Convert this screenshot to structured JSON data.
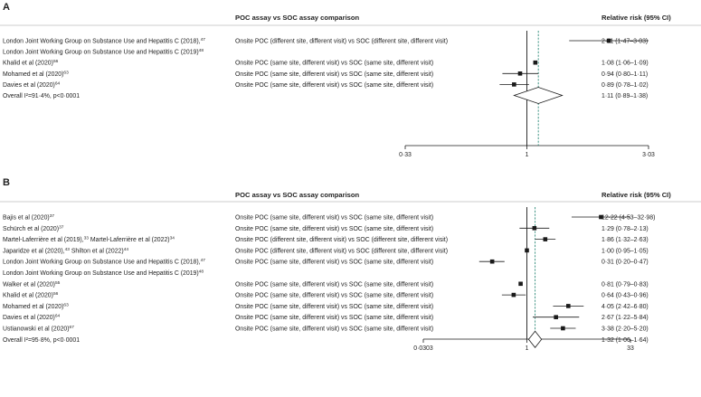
{
  "chart_data": [
    {
      "type": "forest",
      "panel": "A",
      "header": {
        "comparison": "POC assay vs SOC assay comparison",
        "effect": "Relative risk (95% CI)"
      },
      "scale": "log",
      "xlim": [
        0.33,
        3.03
      ],
      "ticks": [
        "0·33",
        "1",
        "3·03"
      ],
      "tick_values": [
        0.33,
        1,
        3.03
      ],
      "pooled_estimate": 1.11,
      "rows": [
        {
          "study": "London Joint Working Group on Substance Use and Hepatitis C (2018),",
          "ref": "47",
          "comparison": "Onsite POC (different site, different visit) vs SOC (different site, different visit)",
          "rr": 2.11,
          "lo": 1.47,
          "hi": 3.03,
          "label": "2·11 (1·47–3·03)"
        },
        {
          "study": "London Joint Working Group on Substance Use and Hepatitis C (2019)",
          "ref": "48",
          "comparison": "",
          "label": ""
        },
        {
          "study": "Khalid et al (2020)",
          "ref": "56",
          "comparison": "Onsite POC (same site, different visit) vs SOC (same site, different visit)",
          "rr": 1.08,
          "lo": 1.06,
          "hi": 1.09,
          "label": "1·08 (1·06–1·09)"
        },
        {
          "study": "Mohamed et al (2020)",
          "ref": "63",
          "comparison": "Onsite POC (same site, different visit) vs SOC (same site, different visit)",
          "rr": 0.94,
          "lo": 0.8,
          "hi": 1.11,
          "label": "0·94 (0·80–1·11)"
        },
        {
          "study": "Davies et al (2020)",
          "ref": "64",
          "comparison": "Onsite POC (same site, different visit) vs SOC (same site, different visit)",
          "rr": 0.89,
          "lo": 0.78,
          "hi": 1.02,
          "label": "0·89 (0·78–1·02)"
        },
        {
          "study": "Overall I²=91·4%, p<0·0001",
          "ref": "",
          "comparison": "",
          "overall": true,
          "rr": 1.11,
          "lo": 0.89,
          "hi": 1.38,
          "label": "1·11 (0·89–1·38)"
        }
      ]
    },
    {
      "type": "forest",
      "panel": "B",
      "header": {
        "comparison": "POC assay vs SOC assay comparison",
        "effect": "Relative risk (95% CI)"
      },
      "scale": "log",
      "xlim": [
        0.0303,
        33
      ],
      "ticks": [
        "0·0303",
        "1",
        "33"
      ],
      "tick_values": [
        0.0303,
        1,
        33
      ],
      "pooled_estimate": 1.32,
      "rows": [
        {
          "study": "Bajis et al (2020)",
          "ref": "37",
          "comparison": "Onsite POC (same site, different visit) vs SOC (same site, different visit)",
          "rr": 12.22,
          "lo": 4.53,
          "hi": 32.98,
          "label": "12·22 (4·53–32·98)"
        },
        {
          "study": "Schürch et al (2020)",
          "ref": "37",
          "comparison": "Onsite POC (same site, different visit) vs SOC (same site, different visit)",
          "rr": 1.29,
          "lo": 0.78,
          "hi": 2.13,
          "label": "1·29 (0·78–2·13)"
        },
        {
          "study": "Martel-Laferrière et al (2019),",
          "ref": "33",
          "study2": " Martel-Laferrière et al (2022)",
          "ref2": "34",
          "comparison": "Onsite POC (different site, different visit) vs SOC (different site, different visit)",
          "rr": 1.86,
          "lo": 1.32,
          "hi": 2.63,
          "label": "1·86 (1·32–2·63)"
        },
        {
          "study": "Japaridze et al (2020),",
          "ref": "43",
          "study2": " Shilton et al (2022)",
          "ref2": "44",
          "comparison": "Onsite POC (different site, different visit) vs SOC (different site, different visit)",
          "rr": 1.0,
          "lo": 0.95,
          "hi": 1.05,
          "label": "1·00 (0·95–1·05)"
        },
        {
          "study": "London Joint Working Group on Substance Use and Hepatitis C (2018),",
          "ref": "47",
          "comparison": "Onsite POC (same site, different visit) vs SOC (same site, different visit)",
          "rr": 0.31,
          "lo": 0.2,
          "hi": 0.47,
          "label": "0·31 (0·20–0·47)"
        },
        {
          "study": "London Joint Working Group on Substance Use and Hepatitis C (2019)",
          "ref": "48",
          "comparison": "",
          "label": ""
        },
        {
          "study": "Walker et al (2020)",
          "ref": "55",
          "comparison": "Onsite POC (same site, different visit) vs SOC (same site, different visit)",
          "rr": 0.81,
          "lo": 0.79,
          "hi": 0.83,
          "label": "0·81 (0·79–0·83)"
        },
        {
          "study": "Khalid et al (2020)",
          "ref": "56",
          "comparison": "Onsite POC (same site, different visit) vs SOC (same site, different visit)",
          "rr": 0.64,
          "lo": 0.43,
          "hi": 0.96,
          "label": "0·64 (0·43–0·96)"
        },
        {
          "study": "Mohamed et al (2020)",
          "ref": "63",
          "comparison": "Onsite POC (same site, different visit) vs SOC (same site, different visit)",
          "rr": 4.05,
          "lo": 2.42,
          "hi": 6.8,
          "label": "4·05 (2·42–6·80)"
        },
        {
          "study": "Davies et al (2020)",
          "ref": "64",
          "comparison": "Onsite POC (same site, different visit) vs SOC (same site, different visit)",
          "rr": 2.67,
          "lo": 1.22,
          "hi": 5.84,
          "label": "2·67 (1·22–5·84)"
        },
        {
          "study": "Ustianowski et al (2020)",
          "ref": "67",
          "comparison": "Onsite POC (same site, different visit) vs SOC (same site, different visit)",
          "rr": 3.38,
          "lo": 2.2,
          "hi": 5.2,
          "label": "3·38 (2·20–5·20)"
        },
        {
          "study": "Overall I²=95·8%, p<0·0001",
          "ref": "",
          "comparison": "",
          "overall": true,
          "rr": 1.32,
          "lo": 1.06,
          "hi": 1.64,
          "label": "1·32 (1·06–1·64)"
        }
      ]
    }
  ],
  "colors": {
    "text": "#222222",
    "rule": "#bdbdbd",
    "marker": "#1a1a1a",
    "pooled_line": "#2e8b7a"
  }
}
